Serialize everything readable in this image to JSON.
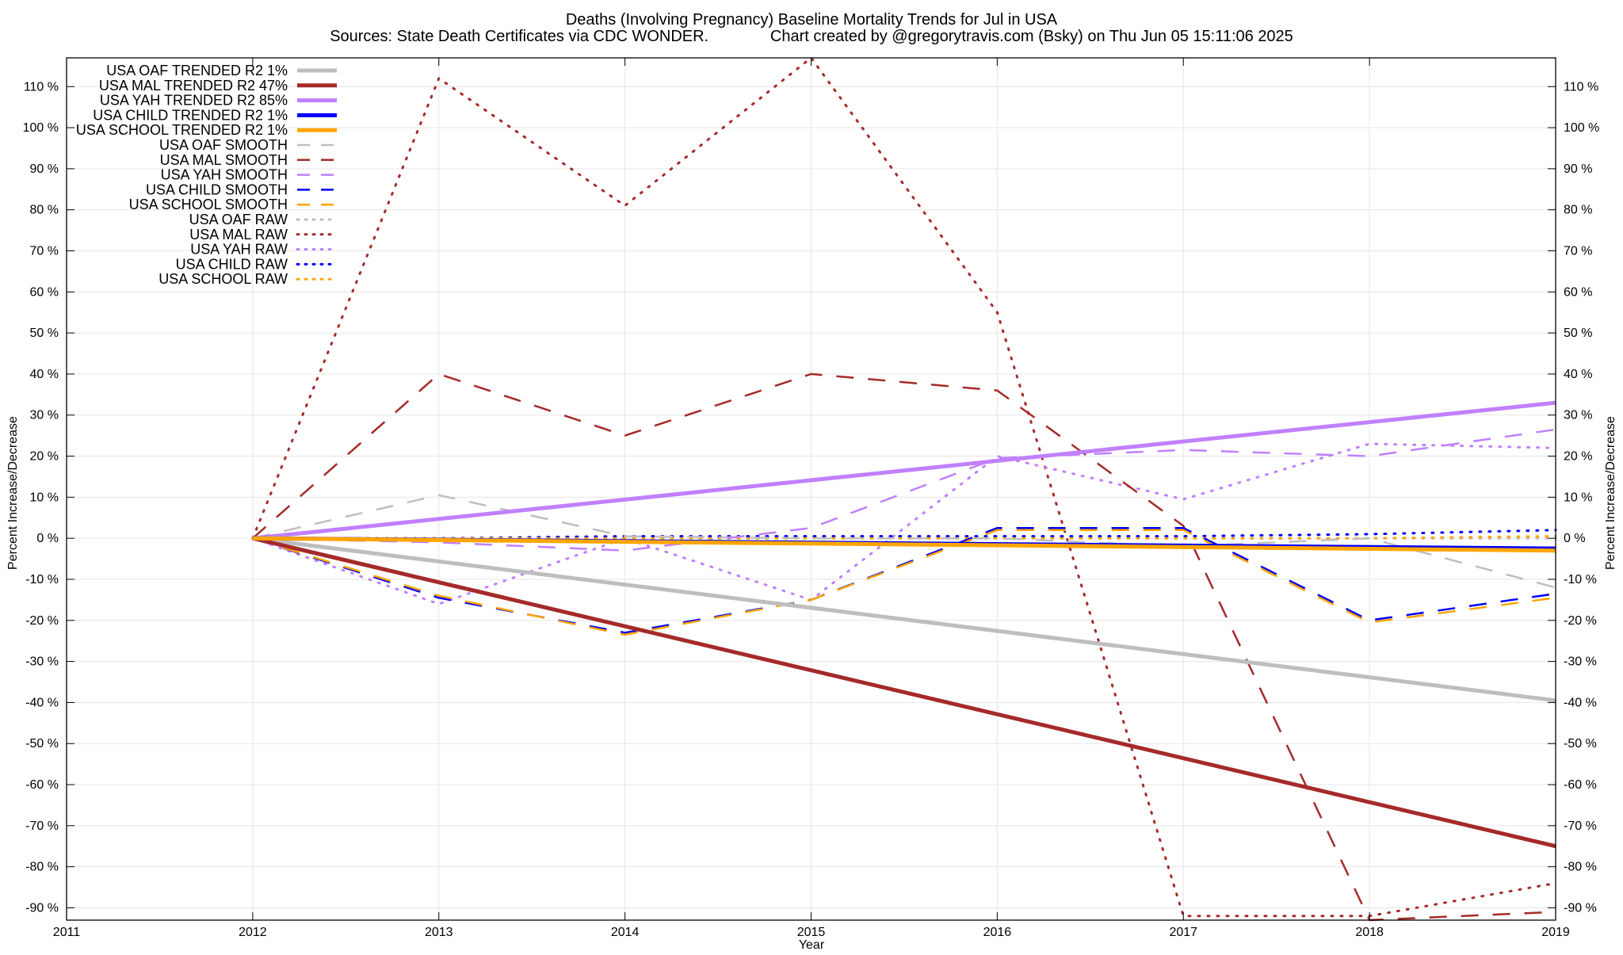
{
  "chart_data": {
    "type": "line",
    "title": "Deaths (Involving Pregnancy)  Baseline Mortality Trends for Jul in USA",
    "subtitle": "Sources: State Death Certificates via CDC WONDER.              Chart created by @gregorytravis.com (Bsky) on Thu Jun 05 15:11:06 2025",
    "xlabel": "Year",
    "ylabel_left": "Percent Increase/Decrease",
    "ylabel_right": "Percent Increase/Decrease",
    "xlim": [
      2011,
      2019
    ],
    "ylim": [
      -93,
      117
    ],
    "x_ticks": [
      2011,
      2012,
      2013,
      2014,
      2015,
      2016,
      2017,
      2018,
      2019
    ],
    "y_ticks": [
      110,
      100,
      90,
      80,
      70,
      60,
      50,
      40,
      30,
      20,
      10,
      0,
      -10,
      -20,
      -30,
      -40,
      -50,
      -60,
      -70,
      -80,
      -90
    ],
    "y_tick_labels_left": [
      "110 %",
      "100 %",
      "90 %",
      "80 %",
      "70 %",
      "60 %",
      "50 %",
      "40 %",
      "30 %",
      "20 %",
      "10 %",
      "0 %",
      "-10 %",
      "-20 %",
      "-30 %",
      "-40 %",
      "-50 %",
      "-60 %",
      "-70 %",
      "-80 %",
      "-90 %"
    ],
    "y_tick_labels_right": [
      "110 %",
      "100 %",
      "90 %",
      "80 %",
      "70 %",
      "60 %",
      "50 %",
      "40 %",
      "30 %",
      "20 %",
      "10 %",
      "0 %",
      "-10 %",
      "-20 %",
      "-30 %",
      "-40 %",
      "-50 %",
      "-60 %",
      "-70 %",
      "-80 %",
      "-90 %"
    ],
    "grid": true,
    "legend_position": "top-left",
    "series": [
      {
        "name": "USA OAF TRENDED R2   1%",
        "style": "solid",
        "color": "#bebebe",
        "x": [
          2012,
          2019
        ],
        "values": [
          0,
          -39.5
        ]
      },
      {
        "name": "USA MAL TRENDED R2  47%",
        "style": "solid",
        "color": "#a52a2a",
        "x": [
          2012,
          2019
        ],
        "values": [
          0,
          -75
        ]
      },
      {
        "name": "USA YAH TRENDED R2  85%",
        "style": "solid",
        "color": "#c080ff",
        "x": [
          2012,
          2019
        ],
        "values": [
          0,
          33
        ]
      },
      {
        "name": "USA CHILD TRENDED R2   1%",
        "style": "solid",
        "color": "#0000ff",
        "x": [
          2012,
          2019
        ],
        "values": [
          0,
          -2.5
        ]
      },
      {
        "name": "USA SCHOOL TRENDED R2   1%",
        "style": "solid",
        "color": "#ffa500",
        "x": [
          2012,
          2019
        ],
        "values": [
          0,
          -3
        ]
      },
      {
        "name": "USA OAF SMOOTH",
        "style": "dashed",
        "color": "#bebebe",
        "x": [
          2012,
          2013,
          2014,
          2015,
          2016,
          2017,
          2018,
          2019
        ],
        "values": [
          0,
          10.5,
          0.5,
          0,
          0,
          -2,
          0,
          -12
        ]
      },
      {
        "name": "USA MAL SMOOTH",
        "style": "dashed",
        "color": "#a52a2a",
        "x": [
          2012,
          2013,
          2014,
          2015,
          2016,
          2017,
          2018,
          2019
        ],
        "values": [
          0,
          40,
          25,
          40,
          36,
          3,
          -93,
          -91
        ]
      },
      {
        "name": "USA YAH SMOOTH",
        "style": "dashed",
        "color": "#c080ff",
        "x": [
          2012,
          2013,
          2014,
          2015,
          2016,
          2017,
          2018,
          2019
        ],
        "values": [
          0,
          -1,
          -3,
          2.5,
          19.5,
          21.5,
          20,
          26.5
        ]
      },
      {
        "name": "USA CHILD SMOOTH",
        "style": "dashed",
        "color": "#0000ff",
        "x": [
          2012,
          2013,
          2014,
          2015,
          2016,
          2017,
          2018,
          2019
        ],
        "values": [
          0,
          -14.5,
          -23,
          -15,
          2.5,
          2.5,
          -20,
          -13.5
        ]
      },
      {
        "name": "USA SCHOOL SMOOTH",
        "style": "dashed",
        "color": "#ffa500",
        "x": [
          2012,
          2013,
          2014,
          2015,
          2016,
          2017,
          2018,
          2019
        ],
        "values": [
          0,
          -14,
          -23.5,
          -15,
          2,
          2,
          -20.5,
          -14.5
        ]
      },
      {
        "name": "USA OAF RAW",
        "style": "dotted",
        "color": "#bebebe",
        "x": [
          2012,
          2013,
          2014,
          2015,
          2016,
          2017,
          2018,
          2019
        ],
        "values": [
          0,
          0,
          0,
          0,
          0,
          0,
          0,
          0
        ]
      },
      {
        "name": "USA MAL RAW",
        "style": "dotted",
        "color": "#a52a2a",
        "x": [
          2012,
          2013,
          2014,
          2015,
          2016,
          2017,
          2018,
          2019
        ],
        "values": [
          0,
          112,
          81,
          117,
          55,
          -92,
          -92,
          -84
        ]
      },
      {
        "name": "USA YAH RAW",
        "style": "dotted",
        "color": "#c080ff",
        "x": [
          2012,
          2013,
          2014,
          2015,
          2016,
          2017,
          2018,
          2019
        ],
        "values": [
          0,
          -16,
          0,
          -15,
          20,
          9.5,
          23,
          22
        ]
      },
      {
        "name": "USA CHILD RAW",
        "style": "dotted",
        "color": "#0000ff",
        "x": [
          2012,
          2013,
          2014,
          2015,
          2016,
          2017,
          2018,
          2019
        ],
        "values": [
          0,
          0,
          0.5,
          0.5,
          0.5,
          0.5,
          1,
          2
        ]
      },
      {
        "name": "USA SCHOOL RAW",
        "style": "dotted",
        "color": "#ffa500",
        "x": [
          2012,
          2013,
          2014,
          2015,
          2016,
          2017,
          2018,
          2019
        ],
        "values": [
          0,
          0,
          0,
          0,
          0,
          0,
          0,
          0.5
        ]
      }
    ]
  }
}
